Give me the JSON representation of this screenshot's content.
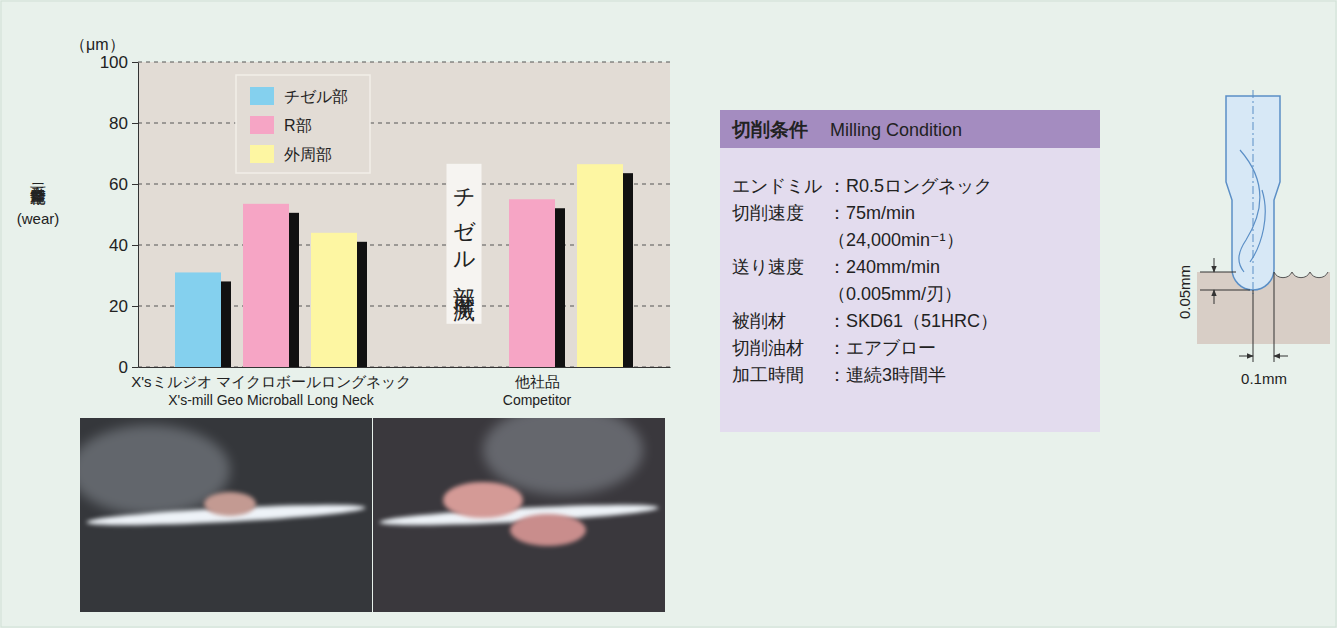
{
  "chart_data": {
    "type": "bar",
    "categories": [
      "X'sミルジオ マイクロボールロングネック\nX's-mill Geo Microball Long Neck",
      "他社品\nCompetitor"
    ],
    "series": [
      {
        "name": "チゼル部",
        "color": "#84d0ee",
        "values": [
          31,
          null
        ]
      },
      {
        "name": "R部",
        "color": "#f6a5c5",
        "values": [
          53.5,
          55
        ]
      },
      {
        "name": "外周部",
        "color": "#fdf6a2",
        "values": [
          44,
          66.5
        ]
      }
    ],
    "ylabel": [
      "二番面摩耗量",
      "(wear)"
    ],
    "ylim": [
      0,
      100
    ],
    "yticks": [
      0,
      20,
      40,
      60,
      80,
      100
    ],
    "grid": true,
    "legend": "top-left",
    "annotations": [
      {
        "text": "（μm）"
      },
      {
        "text": "チゼル部摩滅",
        "category": "他社品\nCompetitor",
        "series": "チゼル部"
      }
    ]
  },
  "table": {
    "title": "切削条件",
    "title_en": "Milling Condition",
    "rows": [
      [
        "エンドミル",
        "：R0.5ロングネック"
      ],
      [
        "切削速度",
        "：75m/min",
        "（24,000min⁻¹）"
      ],
      [
        "送り速度",
        "：240mm/min",
        "（0.005mm/刃）"
      ],
      [
        "被削材",
        "：SKD61（51HRC）"
      ],
      [
        "切削油材",
        "：エアブロー"
      ],
      [
        "加工時間",
        "：連続3時間半"
      ]
    ]
  },
  "diagram": {
    "depth_label": "0.05mm",
    "width_label": "0.1mm"
  }
}
